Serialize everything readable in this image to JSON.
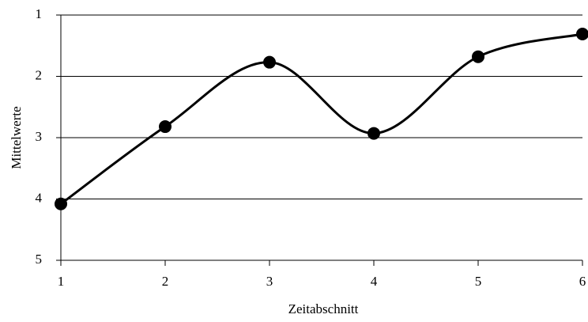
{
  "chart_data": {
    "type": "line",
    "x": [
      1,
      2,
      3,
      4,
      5,
      6
    ],
    "values": [
      4.08,
      2.82,
      1.77,
      2.93,
      1.68,
      1.31
    ],
    "color": "#000000",
    "xlabel": "Zeitabschnitt",
    "ylabel": "Mittelwerte",
    "xlim": [
      1,
      6
    ],
    "xticks": [
      1,
      2,
      3,
      4,
      5,
      6
    ],
    "ylim": [
      5,
      1
    ],
    "yticks": [
      1,
      2,
      3,
      4,
      5
    ],
    "grid": true,
    "smooth": true,
    "markers": true
  }
}
